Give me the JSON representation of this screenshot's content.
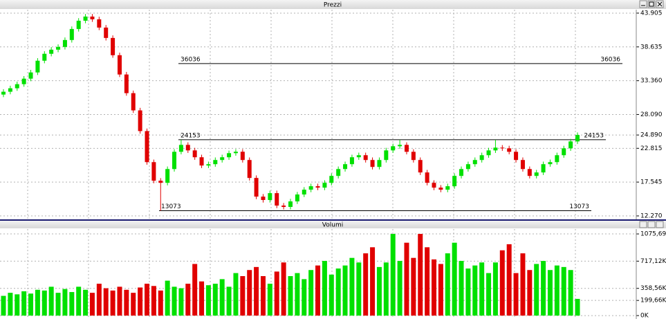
{
  "chart_data": [
    {
      "type": "candlestick",
      "title": "Prezzi",
      "open": [
        31200,
        31640,
        32180,
        32820,
        33680,
        34650,
        36480,
        37560,
        38200,
        38630,
        39710,
        41430,
        42720,
        43370,
        42940,
        41650,
        40030,
        37340,
        34330,
        31420,
        28730,
        25500,
        20660,
        17760,
        17430,
        19580,
        22270,
        23350,
        22490,
        21420,
        20130,
        20340,
        20990,
        21420,
        22060,
        22280,
        20990,
        18190,
        15280,
        14750,
        15820,
        13880,
        13670,
        14530,
        15610,
        16360,
        16900,
        16680,
        17430,
        18510,
        19580,
        20340,
        21420,
        21740,
        20990,
        19910,
        20990,
        22490,
        23140,
        23350,
        22270,
        20990,
        19050,
        17430,
        16680,
        16360,
        16900,
        18510,
        19580,
        20340,
        20990,
        21740,
        22490,
        22920,
        22810,
        22270,
        20990,
        19580,
        18510,
        19050,
        20340,
        20660,
        21740,
        22810,
        23890
      ],
      "high": [
        32040,
        32580,
        33220,
        34080,
        35050,
        36880,
        37960,
        38600,
        39030,
        40110,
        41830,
        43120,
        43770,
        43770,
        43340,
        42050,
        40430,
        37740,
        34730,
        31820,
        29130,
        25900,
        21060,
        18160,
        19980,
        22670,
        24153,
        23750,
        22890,
        21820,
        20740,
        21390,
        21820,
        22460,
        22680,
        22680,
        21390,
        18590,
        15680,
        16220,
        16220,
        14280,
        14930,
        16010,
        16760,
        17300,
        17300,
        17830,
        18910,
        19980,
        20740,
        21820,
        22140,
        22140,
        21390,
        21390,
        22890,
        23540,
        24153,
        23750,
        22670,
        21390,
        19450,
        17830,
        17080,
        17300,
        18910,
        19980,
        20740,
        21390,
        22140,
        22890,
        24153,
        23320,
        23210,
        22670,
        21390,
        19980,
        19450,
        20740,
        21060,
        22140,
        23210,
        24290,
        25290
      ],
      "low": [
        30800,
        31240,
        31780,
        32420,
        33280,
        34250,
        36080,
        37160,
        37800,
        38230,
        39310,
        41030,
        42320,
        42540,
        41250,
        39630,
        36940,
        33930,
        31020,
        28330,
        25100,
        20260,
        17360,
        13073,
        17030,
        19180,
        21870,
        22090,
        21020,
        19730,
        19730,
        19940,
        20590,
        21020,
        21660,
        20590,
        17790,
        14880,
        14350,
        14350,
        13480,
        13270,
        13270,
        14130,
        15210,
        15960,
        16280,
        16280,
        17030,
        18110,
        19180,
        19940,
        21020,
        20590,
        19510,
        19510,
        20590,
        22090,
        22740,
        21870,
        20590,
        18650,
        17030,
        16280,
        15960,
        15960,
        16500,
        18110,
        19180,
        19940,
        20590,
        21340,
        22090,
        22410,
        21870,
        20590,
        19180,
        18110,
        18110,
        18650,
        19940,
        20260,
        21340,
        22410,
        23490
      ],
      "close": [
        31640,
        32180,
        32820,
        33680,
        34650,
        36480,
        37560,
        38200,
        38630,
        39710,
        41430,
        42720,
        43370,
        42940,
        41650,
        40030,
        37340,
        34330,
        31420,
        28730,
        25500,
        20660,
        17760,
        17430,
        19580,
        22270,
        23350,
        22490,
        21420,
        20130,
        20340,
        20990,
        21420,
        22060,
        22280,
        20990,
        18190,
        15280,
        14750,
        15820,
        13880,
        13670,
        14530,
        15610,
        16360,
        16900,
        16680,
        17430,
        18510,
        19580,
        20340,
        21420,
        21740,
        20990,
        19910,
        20990,
        22490,
        23140,
        23350,
        22270,
        20990,
        19050,
        17430,
        16680,
        16360,
        16900,
        18510,
        19580,
        20340,
        20990,
        21740,
        22490,
        22920,
        22810,
        22270,
        20990,
        19580,
        18510,
        19050,
        20340,
        20660,
        21740,
        22810,
        23890,
        24890
      ],
      "up_color": "#00e000",
      "down_color": "#e00000",
      "levels": [
        {
          "value": 36036,
          "label": "36036"
        },
        {
          "value": 24153,
          "label": "24153"
        },
        {
          "value": 13073,
          "label": "13073"
        }
      ],
      "ylim": [
        11730,
        44440
      ],
      "yticks": [
        {
          "value": 43905,
          "label": "43.905"
        },
        {
          "value": 38635,
          "label": "38.635"
        },
        {
          "value": 33360,
          "label": "33.360"
        },
        {
          "value": 28090,
          "label": "28.090"
        },
        {
          "value": 24890,
          "label": "24.890"
        },
        {
          "value": 22815,
          "label": "22.815"
        },
        {
          "value": 17545,
          "label": "17.545"
        },
        {
          "value": 12270,
          "label": "12.270"
        }
      ],
      "grid": true
    },
    {
      "type": "volume",
      "title": "Volumi",
      "values": [
        260000,
        300000,
        280000,
        320000,
        290000,
        340000,
        330000,
        380000,
        300000,
        350000,
        310000,
        380000,
        340000,
        300000,
        420000,
        360000,
        330000,
        380000,
        340000,
        300000,
        370000,
        420000,
        390000,
        330000,
        460000,
        380000,
        360000,
        420000,
        680000,
        450000,
        400000,
        420000,
        480000,
        380000,
        560000,
        520000,
        600000,
        640000,
        520000,
        420000,
        580000,
        700000,
        520000,
        560000,
        480000,
        600000,
        660000,
        720000,
        540000,
        620000,
        660000,
        760000,
        700000,
        820000,
        900000,
        640000,
        700000,
        1075690,
        720000,
        960000,
        760000,
        1075690,
        900000,
        740000,
        680000,
        820000,
        960000,
        720000,
        620000,
        660000,
        700000,
        560000,
        700000,
        860000,
        940000,
        560000,
        820000,
        600000,
        680000,
        720000,
        600000,
        660000,
        640000,
        600000,
        220000
      ],
      "ylim": [
        -45000,
        1140000
      ],
      "yticks": [
        {
          "value": 1075690,
          "label": "1075,69K"
        },
        {
          "value": 717120,
          "label": "717,12K"
        },
        {
          "value": 358560,
          "label": "358,56K"
        },
        {
          "value": 199660,
          "label": "199,66K"
        },
        {
          "value": 0,
          "label": "0K"
        }
      ],
      "grid": true
    }
  ]
}
